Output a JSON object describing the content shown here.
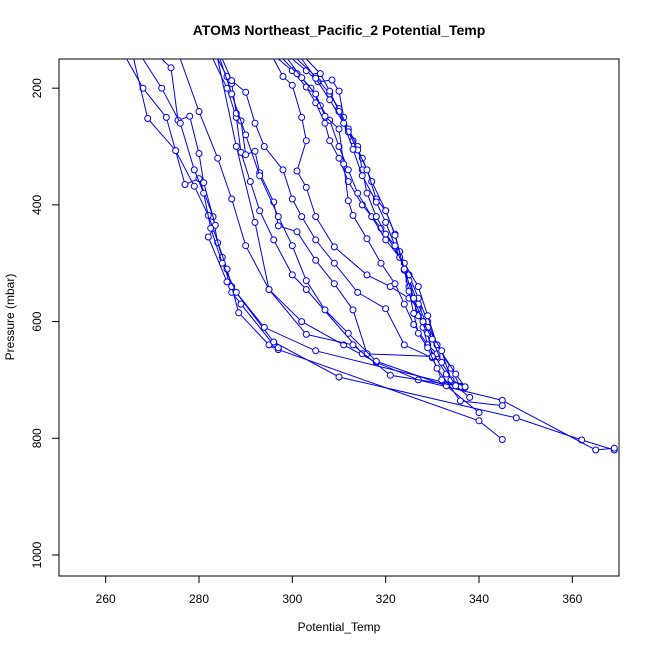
{
  "chart_data": {
    "type": "line",
    "title": "ATOM3 Northeast_Pacific_2 Potential_Temp",
    "xlabel": "Potential_Temp",
    "ylabel": "Pressure (mbar)",
    "xlim": [
      250,
      370
    ],
    "ylim": [
      1036,
      150
    ],
    "y_reversed": true,
    "x_ticks": [
      "260",
      "280",
      "300",
      "320",
      "340",
      "360"
    ],
    "y_ticks": [
      "200",
      "400",
      "600",
      "800",
      "1000"
    ],
    "grid": false,
    "legend": "none",
    "series_color": "#0000ee",
    "marker": "open-circle",
    "series": [
      {
        "points": [
          [
            264.5,
            150
          ],
          [
            268,
            200
          ],
          [
            273,
            250
          ],
          [
            277,
            365
          ],
          [
            280,
            355
          ],
          [
            283,
            420
          ],
          [
            284,
            465
          ],
          [
            285,
            490
          ],
          [
            287,
            550
          ],
          [
            289,
            570
          ],
          [
            296,
            640
          ],
          [
            297,
            648
          ],
          [
            340,
            770
          ],
          [
            345,
            802
          ]
        ]
      },
      {
        "points": [
          [
            266,
            150
          ],
          [
            269,
            252
          ],
          [
            275,
            307
          ],
          [
            279,
            368
          ],
          [
            282,
            418
          ],
          [
            283,
            440
          ],
          [
            286,
            510
          ],
          [
            288.5,
            585
          ],
          [
            295,
            640
          ],
          [
            297,
            645
          ]
        ]
      },
      {
        "points": [
          [
            272,
            150
          ],
          [
            274,
            165
          ],
          [
            275.5,
            255
          ],
          [
            278,
            248
          ],
          [
            280,
            312
          ],
          [
            281,
            362
          ],
          [
            283.5,
            435
          ],
          [
            282,
            455
          ],
          [
            286,
            532
          ],
          [
            287,
            540
          ],
          [
            296,
            635
          ],
          [
            310,
            695
          ],
          [
            348,
            765
          ],
          [
            362,
            803
          ],
          [
            369,
            820
          ]
        ]
      },
      {
        "points": [
          [
            268,
            150
          ],
          [
            272,
            200
          ],
          [
            276,
            260
          ],
          [
            279,
            340
          ],
          [
            281,
            380
          ],
          [
            282.5,
            440
          ],
          [
            285,
            500
          ],
          [
            288,
            550
          ],
          [
            294,
            610
          ],
          [
            305,
            650
          ],
          [
            337,
            713
          ]
        ]
      },
      {
        "points": [
          [
            276,
            150
          ],
          [
            280,
            240
          ],
          [
            284,
            320
          ],
          [
            287,
            390
          ],
          [
            290,
            470
          ],
          [
            295,
            545
          ],
          [
            302,
            600
          ],
          [
            311,
            640
          ],
          [
            318,
            670
          ],
          [
            327,
            700
          ],
          [
            345,
            735
          ],
          [
            365,
            820
          ],
          [
            369,
            817
          ]
        ]
      },
      {
        "points": [
          [
            283,
            150
          ],
          [
            286,
            200
          ],
          [
            288,
            250
          ],
          [
            289,
            310
          ],
          [
            291,
            360
          ],
          [
            293,
            410
          ],
          [
            296,
            460
          ],
          [
            300,
            520
          ],
          [
            303,
            545
          ],
          [
            315,
            655
          ],
          [
            331,
            660
          ]
        ]
      },
      {
        "points": [
          [
            284,
            150
          ],
          [
            286,
            180
          ],
          [
            287,
            192
          ],
          [
            288,
            243
          ],
          [
            289,
            256
          ],
          [
            290,
            314
          ],
          [
            292,
            308
          ],
          [
            293,
            345
          ],
          [
            296,
            395
          ],
          [
            297,
            436
          ],
          [
            301,
            446
          ],
          [
            305,
            495
          ],
          [
            309,
            535
          ],
          [
            313,
            580
          ],
          [
            316,
            655
          ]
        ]
      },
      {
        "points": [
          [
            285,
            150
          ],
          [
            287,
            187
          ],
          [
            290,
            207
          ],
          [
            292,
            260
          ],
          [
            294,
            300
          ],
          [
            298,
            340
          ],
          [
            300,
            390
          ],
          [
            302,
            420
          ],
          [
            305,
            460
          ],
          [
            309,
            500
          ],
          [
            314,
            550
          ],
          [
            320,
            578
          ],
          [
            324,
            640
          ],
          [
            330,
            662
          ]
        ]
      },
      {
        "points": [
          [
            284.5,
            150
          ],
          [
            287,
            210
          ],
          [
            290,
            280
          ],
          [
            293,
            350
          ],
          [
            297,
            420
          ],
          [
            300,
            470
          ],
          [
            303,
            530
          ],
          [
            307,
            580
          ],
          [
            312,
            620
          ],
          [
            318,
            668
          ],
          [
            333,
            710
          ],
          [
            340,
            756
          ]
        ]
      },
      {
        "points": [
          [
            284,
            150
          ],
          [
            288,
            300
          ],
          [
            292,
            430
          ],
          [
            295,
            545
          ],
          [
            303,
            622
          ],
          [
            313,
            640
          ],
          [
            321,
            692
          ],
          [
            336,
            711
          ]
        ]
      },
      {
        "points": [
          [
            296,
            150
          ],
          [
            298,
            180
          ],
          [
            300,
            195
          ],
          [
            302,
            250
          ],
          [
            303,
            290
          ],
          [
            301,
            342
          ],
          [
            303,
            370
          ],
          [
            305,
            420
          ],
          [
            309,
            472
          ],
          [
            316,
            520
          ],
          [
            321,
            540
          ],
          [
            325,
            560
          ],
          [
            327,
            578
          ],
          [
            328,
            610
          ],
          [
            329,
            640
          ],
          [
            331,
            655
          ]
        ]
      },
      {
        "points": [
          [
            297,
            150
          ],
          [
            300,
            170
          ],
          [
            303,
            198
          ],
          [
            305,
            225
          ],
          [
            307,
            260
          ],
          [
            308,
            290
          ],
          [
            310,
            320
          ],
          [
            312,
            360
          ],
          [
            315,
            400
          ],
          [
            319,
            440
          ],
          [
            323,
            480
          ],
          [
            325,
            520
          ],
          [
            327,
            560
          ],
          [
            329,
            600
          ],
          [
            331,
            640
          ],
          [
            334,
            680
          ],
          [
            336,
            712
          ]
        ]
      },
      {
        "points": [
          [
            298,
            150
          ],
          [
            301,
            175
          ],
          [
            304,
            200
          ],
          [
            306,
            230
          ],
          [
            308,
            255
          ],
          [
            310,
            300
          ],
          [
            312,
            340
          ],
          [
            314,
            380
          ],
          [
            317,
            420
          ],
          [
            320,
            460
          ],
          [
            324,
            500
          ],
          [
            327,
            540
          ],
          [
            329,
            590
          ],
          [
            331,
            640
          ],
          [
            335,
            690
          ],
          [
            337,
            712
          ]
        ]
      },
      {
        "points": [
          [
            299,
            150
          ],
          [
            302,
            182
          ],
          [
            305,
            210
          ],
          [
            307,
            248
          ],
          [
            310,
            270
          ],
          [
            311,
            330
          ],
          [
            312,
            393
          ],
          [
            313,
            418
          ],
          [
            316,
            458
          ],
          [
            319,
            500
          ],
          [
            322,
            535
          ],
          [
            324,
            570
          ],
          [
            326,
            605
          ],
          [
            329,
            640
          ],
          [
            333,
            690
          ],
          [
            336,
            711
          ]
        ]
      },
      {
        "points": [
          [
            300,
            150
          ],
          [
            303,
            170
          ],
          [
            305.5,
            189
          ],
          [
            308.5,
            186
          ],
          [
            310,
            205
          ],
          [
            311,
            250
          ],
          [
            313,
            290
          ],
          [
            315,
            320
          ],
          [
            317,
            360
          ],
          [
            320,
            410
          ],
          [
            322,
            450
          ],
          [
            324,
            510
          ],
          [
            325,
            540
          ],
          [
            327,
            590
          ],
          [
            329,
            620
          ],
          [
            330,
            660
          ],
          [
            332,
            700
          ],
          [
            336,
            712
          ]
        ]
      },
      {
        "points": [
          [
            301,
            150
          ],
          [
            305,
            180
          ],
          [
            308,
            210
          ],
          [
            310,
            235
          ],
          [
            312,
            270
          ],
          [
            314,
            300
          ],
          [
            315,
            340
          ],
          [
            316,
            380
          ],
          [
            318,
            420
          ],
          [
            320,
            450
          ],
          [
            323,
            490
          ],
          [
            325,
            530
          ],
          [
            327,
            570
          ],
          [
            329,
            610
          ],
          [
            332,
            650
          ],
          [
            334,
            700
          ],
          [
            337,
            712
          ]
        ]
      },
      {
        "points": [
          [
            303,
            150
          ],
          [
            306,
            175
          ],
          [
            308,
            205
          ],
          [
            310,
            240
          ],
          [
            312,
            275
          ],
          [
            314,
            306
          ],
          [
            316,
            340
          ],
          [
            318,
            390
          ],
          [
            320,
            410
          ],
          [
            322,
            452
          ],
          [
            324,
            512
          ],
          [
            325,
            548
          ],
          [
            326,
            586
          ],
          [
            327,
            620
          ],
          [
            329,
            645
          ],
          [
            331,
            680
          ],
          [
            336,
            736
          ],
          [
            345,
            744
          ]
        ]
      },
      {
        "points": [
          [
            302,
            150
          ],
          [
            305,
            183
          ],
          [
            308,
            220
          ],
          [
            311,
            260
          ],
          [
            313,
            305
          ],
          [
            315,
            350
          ],
          [
            318,
            395
          ],
          [
            320,
            430
          ],
          [
            322,
            470
          ],
          [
            324,
            510
          ],
          [
            326,
            560
          ],
          [
            328,
            600
          ],
          [
            330,
            630
          ],
          [
            332,
            670
          ],
          [
            335,
            710
          ],
          [
            338,
            730
          ]
        ]
      }
    ]
  }
}
